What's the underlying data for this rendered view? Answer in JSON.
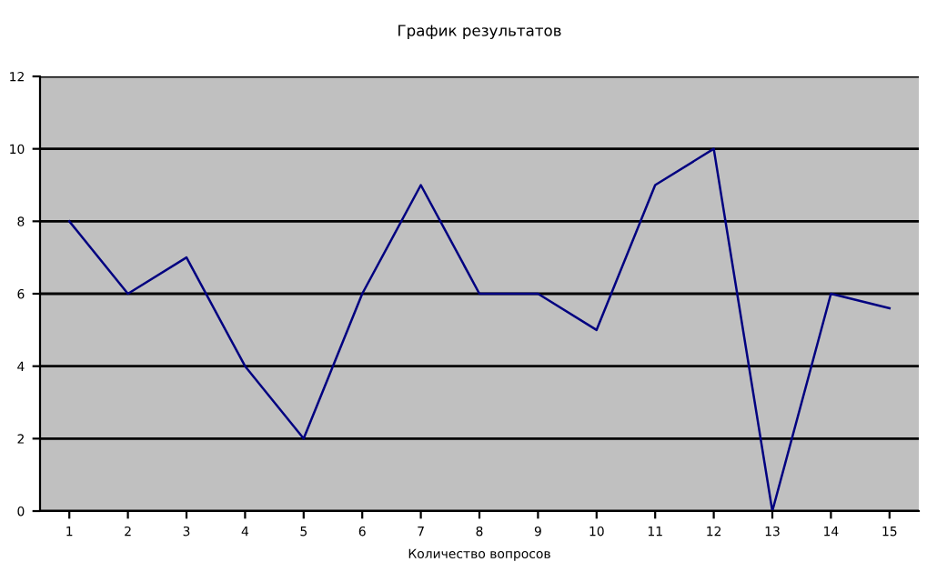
{
  "chart_data": {
    "type": "line",
    "title": "График результатов",
    "xlabel": "Количество вопросов",
    "categories": [
      "1",
      "2",
      "3",
      "4",
      "5",
      "6",
      "7",
      "8",
      "9",
      "10",
      "11",
      "12",
      "13",
      "14",
      "15"
    ],
    "series": [
      {
        "color": "#000080",
        "values": [
          8,
          6,
          7,
          4,
          2,
          6,
          9,
          6,
          6,
          5,
          9,
          10,
          0,
          6,
          5.6
        ]
      }
    ],
    "ylim": [
      0,
      12
    ],
    "yticks": [
      0,
      2,
      4,
      6,
      8,
      10,
      12
    ],
    "grid": "y"
  }
}
